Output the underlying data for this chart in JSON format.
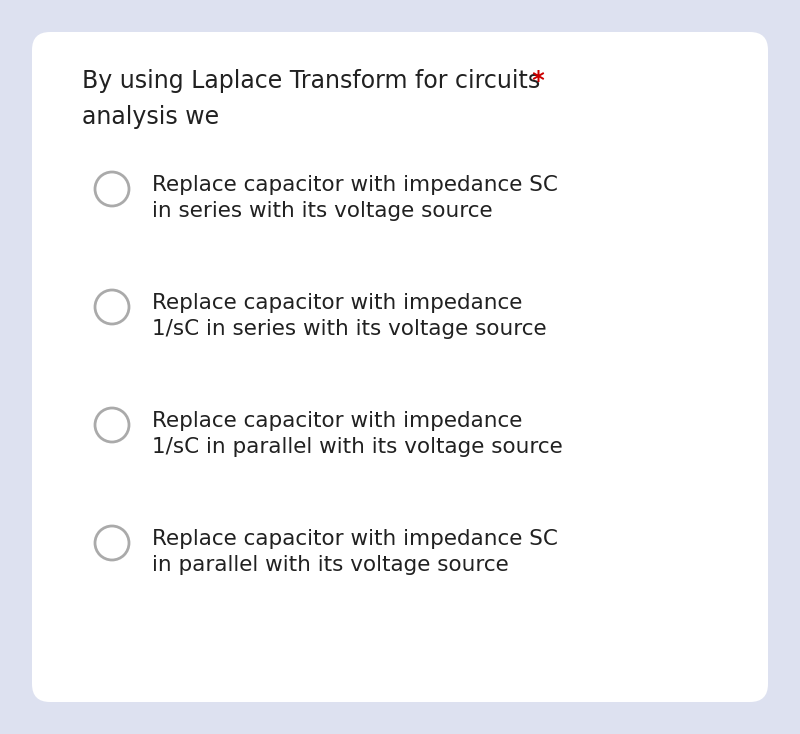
{
  "background_color": "#dde1f0",
  "card_color": "#ffffff",
  "question_line1": "By using Laplace Transform for circuits",
  "question_line2": "analysis we",
  "asterisk": " *",
  "asterisk_color": "#cc0000",
  "options": [
    "Replace capacitor with impedance SC\nin series with its voltage source",
    "Replace capacitor with impedance\n1/sC in series with its voltage source",
    "Replace capacitor with impedance\n1/sC in parallel with its voltage source",
    "Replace capacitor with impedance SC\nin parallel with its voltage source"
  ],
  "text_color": "#212121",
  "circle_edge_color": "#aaaaaa",
  "circle_face_color": "#ffffff",
  "question_fontsize": 17,
  "option_fontsize": 15.5
}
